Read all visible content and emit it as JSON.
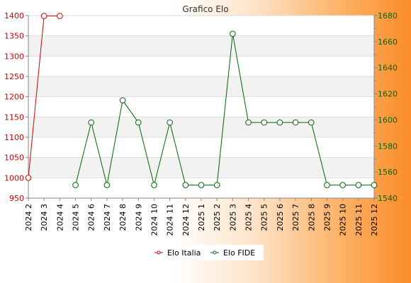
{
  "chart_data": {
    "type": "line",
    "title": "Grafico Elo",
    "categories": [
      "2024 2",
      "2024 3",
      "2024 4",
      "2024 5",
      "2024 6",
      "2024 7",
      "2024 8",
      "2024 9",
      "2024 10",
      "2024 11",
      "2024 12",
      "2025 1",
      "2025 2",
      "2025 3",
      "2025 4",
      "2025 5",
      "2025 6",
      "2025 7",
      "2025 8",
      "2025 9",
      "2025 10",
      "2025 11",
      "2025 12"
    ],
    "left_axis": {
      "range": [
        950,
        1400
      ],
      "ticks": [
        950,
        1000,
        1050,
        1100,
        1150,
        1200,
        1250,
        1300,
        1350,
        1400
      ],
      "color": "#cc0000"
    },
    "right_axis": {
      "range": [
        1540,
        1680
      ],
      "ticks": [
        1540,
        1560,
        1580,
        1600,
        1620,
        1640,
        1660,
        1680
      ],
      "color": "#006600"
    },
    "series": [
      {
        "name": "Elo Italia",
        "axis": "left",
        "color": "#cc0000",
        "values": [
          1000,
          1399,
          1399,
          null,
          null,
          null,
          null,
          null,
          null,
          null,
          null,
          null,
          null,
          null,
          null,
          null,
          null,
          null,
          null,
          null,
          null,
          null,
          null
        ]
      },
      {
        "name": "Elo FIDE",
        "axis": "right",
        "color": "#006600",
        "values": [
          null,
          null,
          null,
          1550,
          1598,
          1550,
          1615,
          1598,
          1550,
          1598,
          1550,
          1550,
          1550,
          1666,
          1598,
          1598,
          1598,
          1598,
          1598,
          1550,
          1550,
          1550,
          1550
        ]
      }
    ],
    "grid": true,
    "legend_position": "bottom-center"
  }
}
